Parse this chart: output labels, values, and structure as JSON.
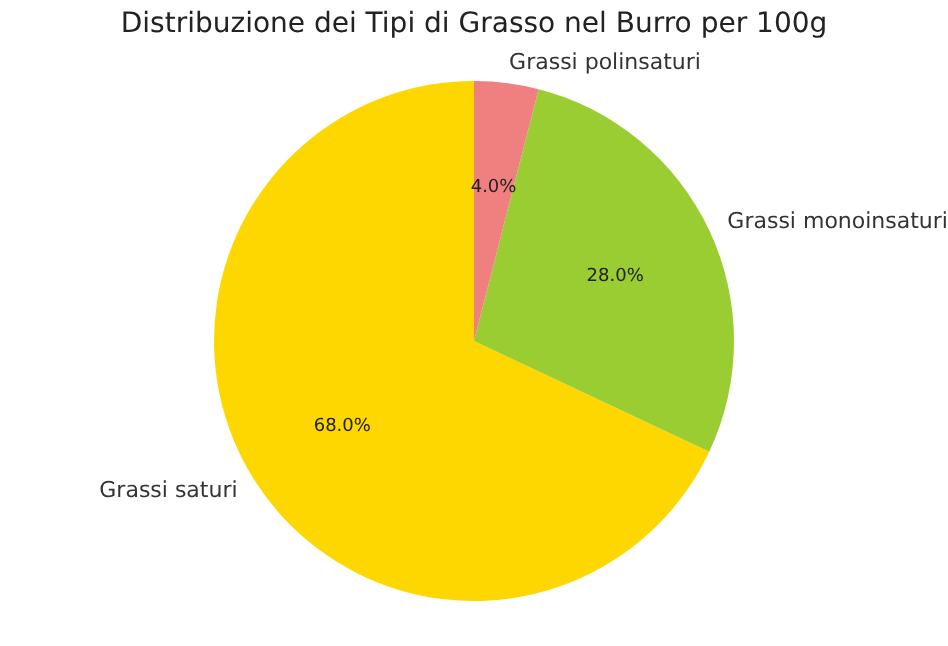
{
  "chart_data": {
    "type": "pie",
    "title": "Distribuzione dei Tipi di Grasso nel Burro per 100g",
    "categories": [
      "Grassi saturi",
      "Grassi monoinsaturi",
      "Grassi polinsaturi"
    ],
    "values": [
      68,
      28,
      4
    ],
    "colors": [
      "#ffd700",
      "#9acd32",
      "#f08080"
    ],
    "value_labels": [
      "68.0%",
      "28.0%",
      "4.0%"
    ],
    "legend": false
  }
}
